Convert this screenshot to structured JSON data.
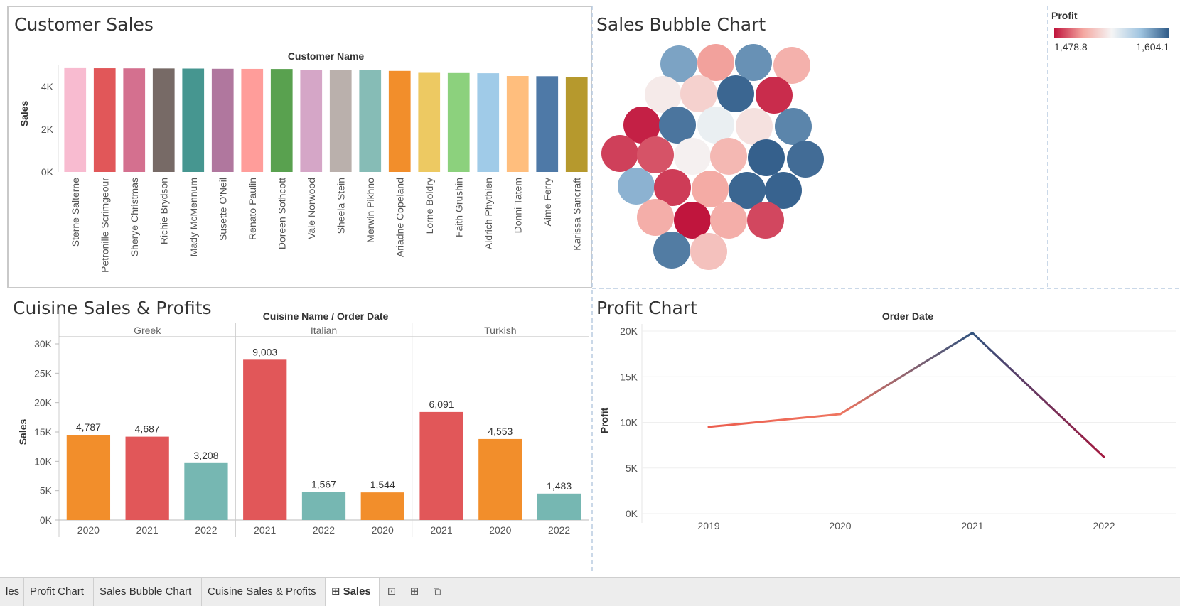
{
  "panels": {
    "customer_sales": {
      "title": "Customer Sales"
    },
    "bubble": {
      "title": "Sales Bubble Chart"
    },
    "cuisine": {
      "title": "Cuisine Sales & Profits"
    },
    "profit": {
      "title": "Profit Chart"
    }
  },
  "legend": {
    "title": "Profit",
    "min_label": "1,478.8",
    "max_label": "1,604.1",
    "colors": [
      "#c0143c",
      "#f4a6a0",
      "#f5f5f5",
      "#9fc4e0",
      "#2e5a87"
    ]
  },
  "tabs": [
    {
      "label": "les",
      "active": false
    },
    {
      "label": "Profit Chart",
      "active": false
    },
    {
      "label": "Sales Bubble Chart",
      "active": false
    },
    {
      "label": "Cuisine Sales & Profits",
      "active": false
    },
    {
      "label": "Sales",
      "active": true,
      "icon": "grid-icon"
    }
  ],
  "tab_icons": [
    "new-worksheet-icon",
    "new-dashboard-icon",
    "new-story-icon"
  ],
  "chart_data": [
    {
      "type": "bar",
      "name": "customer_sales",
      "title": "Customer Sales",
      "header": "Customer Name",
      "ylabel": "Sales",
      "ylim": [
        0,
        5000
      ],
      "yticks": [
        0,
        2000,
        4000
      ],
      "ytick_labels": [
        "0K",
        "2K",
        "4K"
      ],
      "categories": [
        "Sterne Salterne",
        "Petronille Scrimgeour",
        "Sherye Christmas",
        "Richie Brydson",
        "Mady McMennum",
        "Susette O'Neil",
        "Renato Paulin",
        "Doreen Sothcott",
        "Vale Norwood",
        "Sheela Stein",
        "Merwin Pikhno",
        "Ariadne Copeland",
        "Lorne Boldry",
        "Faith Grushin",
        "Aldrich Phythien",
        "Donni Tatem",
        "Aime Ferry",
        "Karissa Sancraft"
      ],
      "values": [
        4870,
        4865,
        4860,
        4855,
        4850,
        4840,
        4835,
        4830,
        4800,
        4780,
        4770,
        4740,
        4650,
        4640,
        4630,
        4500,
        4490,
        4440
      ],
      "colors": [
        "#f8bbd0",
        "#e15759",
        "#d4708f",
        "#776a66",
        "#469690",
        "#b0779e",
        "#ff9d9a",
        "#59a14f",
        "#d5a6c7",
        "#bab0ac",
        "#86bcb6",
        "#f28e2b",
        "#edc962",
        "#8cd17d",
        "#a0cbe8",
        "#ffbe7d",
        "#4e79a7",
        "#b6992d"
      ]
    },
    {
      "type": "scatter",
      "name": "sales_bubble",
      "title": "Sales Bubble Chart",
      "color_by": "Profit",
      "color_range": [
        1478.8,
        1604.1
      ],
      "values": [
        1580,
        1515,
        1586,
        1520,
        1538,
        1530,
        1600,
        1485,
        1482,
        1595,
        1545,
        1535,
        1590,
        1490,
        1495,
        1540,
        1522,
        1602,
        1598,
        1575,
        1489,
        1518,
        1600,
        1601,
        1519,
        1479,
        1519,
        1492,
        1593,
        1525
      ]
    },
    {
      "type": "bar",
      "name": "cuisine_sales_profits",
      "title": "Cuisine Sales & Profits",
      "header": "Cuisine Name  /  Order Date",
      "ylabel": "Sales",
      "ylim": [
        0,
        30000
      ],
      "yticks": [
        0,
        5000,
        10000,
        15000,
        20000,
        25000,
        30000
      ],
      "ytick_labels": [
        "0K",
        "5K",
        "10K",
        "15K",
        "20K",
        "25K",
        "30K"
      ],
      "groups": [
        {
          "name": "Greek",
          "bars": [
            {
              "year": "2020",
              "sales": 14500,
              "label": "4,787",
              "color": "#f28e2b"
            },
            {
              "year": "2021",
              "sales": 14200,
              "label": "4,687",
              "color": "#e15759"
            },
            {
              "year": "2022",
              "sales": 9700,
              "label": "3,208",
              "color": "#76b7b2"
            }
          ]
        },
        {
          "name": "Italian",
          "bars": [
            {
              "year": "2021",
              "sales": 27300,
              "label": "9,003",
              "color": "#e15759"
            },
            {
              "year": "2022",
              "sales": 4800,
              "label": "1,567",
              "color": "#76b7b2"
            },
            {
              "year": "2020",
              "sales": 4700,
              "label": "1,544",
              "color": "#f28e2b"
            }
          ]
        },
        {
          "name": "Turkish",
          "bars": [
            {
              "year": "2021",
              "sales": 18400,
              "label": "6,091",
              "color": "#e15759"
            },
            {
              "year": "2020",
              "sales": 13800,
              "label": "4,553",
              "color": "#f28e2b"
            },
            {
              "year": "2022",
              "sales": 4500,
              "label": "1,483",
              "color": "#76b7b2"
            }
          ]
        }
      ]
    },
    {
      "type": "line",
      "name": "profit_chart",
      "title": "Profit Chart",
      "header": "Order Date",
      "ylabel": "Profit",
      "ylim": [
        0,
        20000
      ],
      "yticks": [
        0,
        5000,
        10000,
        15000,
        20000
      ],
      "ytick_labels": [
        "0K",
        "5K",
        "10K",
        "15K",
        "20K"
      ],
      "x": [
        "2019",
        "2020",
        "2021",
        "2022"
      ],
      "values": [
        9500,
        10900,
        19800,
        6200
      ]
    }
  ]
}
